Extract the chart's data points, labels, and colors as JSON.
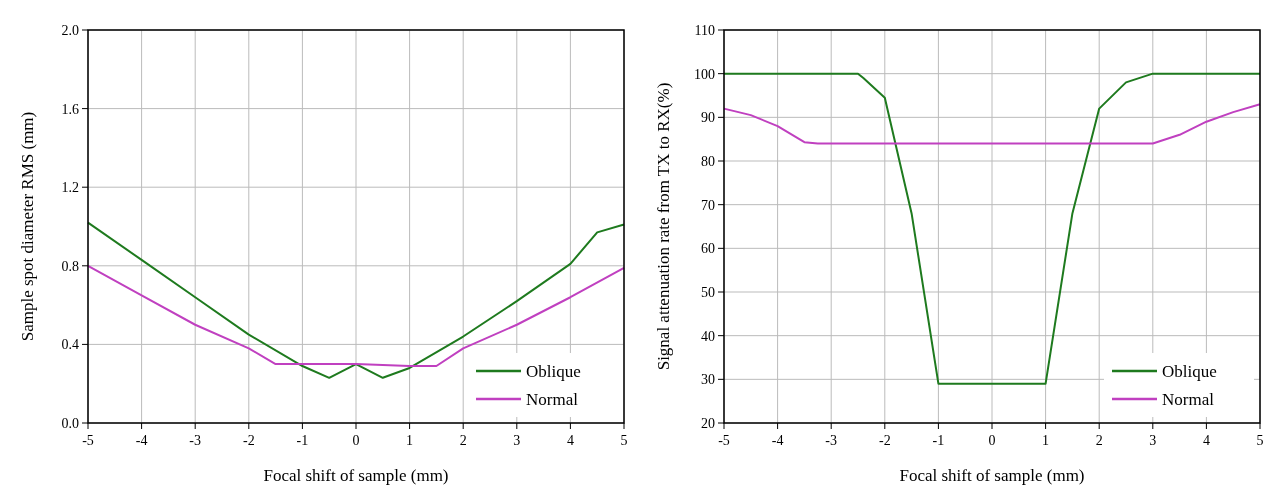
{
  "chart_data": [
    {
      "type": "line",
      "xlabel": "Focal shift of sample (mm)",
      "ylabel": "Sample spot diameter RMS (mm)",
      "xlim": [
        -5,
        5
      ],
      "xticks": [
        -5,
        -4,
        -3,
        -2,
        -1,
        0,
        1,
        2,
        3,
        4,
        5
      ],
      "ylim": [
        0,
        2
      ],
      "yticks": [
        {
          "value": 0,
          "label": "0.0"
        },
        {
          "value": 0.4,
          "label": "0.4"
        },
        {
          "value": 0.8,
          "label": "0.8"
        },
        {
          "value": 1.2,
          "label": "1.2"
        },
        {
          "value": 1.6,
          "label": "1.6"
        },
        {
          "value": 2,
          "label": "2.0"
        }
      ],
      "grid": true,
      "legend": "bottom right",
      "series": [
        {
          "name": "Oblique",
          "color": "#1e7a1e",
          "x": [
            -5,
            -4,
            -3,
            -2,
            -1,
            -0.5,
            0,
            0.5,
            1,
            2,
            3,
            4,
            4.5,
            5
          ],
          "values": [
            1.02,
            0.83,
            0.64,
            0.45,
            0.29,
            0.23,
            0.3,
            0.23,
            0.28,
            0.44,
            0.62,
            0.81,
            0.97,
            1.01
          ]
        },
        {
          "name": "Normal",
          "color": "#c040c0",
          "x": [
            -5,
            -4,
            -3,
            -2,
            -1.5,
            0,
            1,
            1.5,
            2,
            3,
            4,
            5
          ],
          "values": [
            0.8,
            0.65,
            0.5,
            0.38,
            0.3,
            0.3,
            0.29,
            0.29,
            0.38,
            0.5,
            0.64,
            0.79
          ]
        }
      ]
    },
    {
      "type": "line",
      "xlabel": "Focal shift of sample (mm)",
      "ylabel": "Signal attenuation rate from TX to RX(%)",
      "xlim": [
        -5,
        5
      ],
      "xticks": [
        -5,
        -4,
        -3,
        -2,
        -1,
        0,
        1,
        2,
        3,
        4,
        5
      ],
      "ylim": [
        20,
        110
      ],
      "yticks": [
        20,
        30,
        40,
        50,
        60,
        70,
        80,
        90,
        100,
        110
      ],
      "grid": true,
      "legend": "bottom right",
      "series": [
        {
          "name": "Oblique",
          "color": "#1e7a1e",
          "x": [
            -5,
            -2.5,
            -2.4,
            -2,
            -1.5,
            -1,
            1,
            1.5,
            2,
            2.5,
            3,
            5
          ],
          "values": [
            100,
            100,
            99,
            94.5,
            68,
            29,
            29,
            68,
            92,
            98,
            100,
            100
          ]
        },
        {
          "name": "Normal",
          "color": "#c040c0",
          "x": [
            -5,
            -4.5,
            -4,
            -3.5,
            -3.25,
            3,
            3.5,
            4,
            4.5,
            5
          ],
          "values": [
            92,
            90.5,
            88,
            84.3,
            84,
            84,
            86,
            89,
            91.2,
            93
          ]
        }
      ]
    }
  ]
}
